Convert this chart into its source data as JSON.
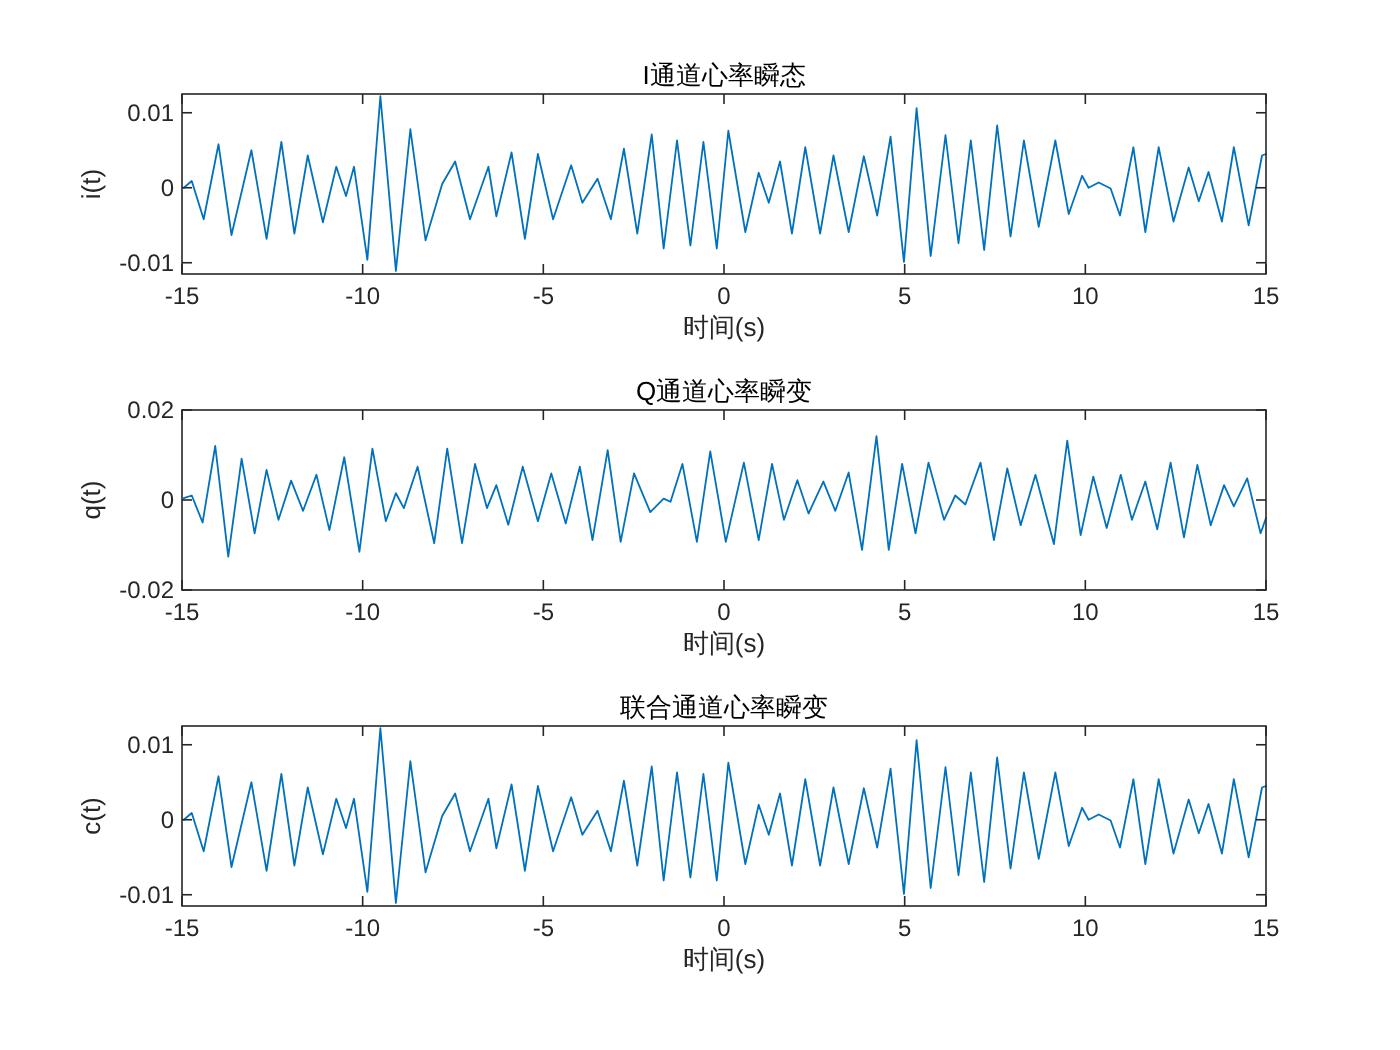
{
  "chart_data": [
    {
      "type": "line",
      "title": "I通道心率瞬态",
      "xlabel": "时间(s)",
      "ylabel": "i(t)",
      "xlim": [
        -15,
        15
      ],
      "xticks": [
        -15,
        -10,
        -5,
        0,
        5,
        10,
        15
      ],
      "ylim": [
        -0.0115,
        0.0125
      ],
      "yticks": [
        -0.01,
        0,
        0.01
      ],
      "x": [
        -14.95,
        -14.73,
        -14.4,
        -13.99,
        -13.63,
        -13.08,
        -12.66,
        -12.25,
        -11.89,
        -11.52,
        -11.1,
        -10.73,
        -10.46,
        -10.24,
        -9.87,
        -9.51,
        -9.08,
        -8.68,
        -8.26,
        -7.8,
        -7.44,
        -7.03,
        -6.52,
        -6.3,
        -5.88,
        -5.51,
        -5.15,
        -4.73,
        -4.23,
        -3.92,
        -3.5,
        -3.13,
        -2.77,
        -2.4,
        -2.0,
        -1.67,
        -1.3,
        -0.93,
        -0.57,
        -0.2,
        0.12,
        0.59,
        0.96,
        1.24,
        1.55,
        1.88,
        2.25,
        2.66,
        3.03,
        3.45,
        3.87,
        4.24,
        4.61,
        4.98,
        5.33,
        5.72,
        6.13,
        6.49,
        6.83,
        7.2,
        7.56,
        7.93,
        8.3,
        8.71,
        9.17,
        9.54,
        9.91,
        10.09,
        10.37,
        10.7,
        10.96,
        11.33,
        11.66,
        12.03,
        12.44,
        12.86,
        13.14,
        13.41,
        13.78,
        14.11,
        14.52,
        14.89,
        15
      ],
      "series": [
        {
          "color": "#0072bd",
          "values": [
            0,
            0.0009,
            -0.0042,
            0.0058,
            -0.0063,
            0.005,
            -0.0068,
            0.0061,
            -0.0061,
            0.0043,
            -0.0046,
            0.0028,
            -0.0011,
            0.0028,
            -0.0096,
            0.0122,
            -0.0111,
            0.0078,
            -0.007,
            0.0005,
            0.0035,
            -0.0042,
            0.0028,
            -0.0038,
            0.0047,
            -0.0068,
            0.0045,
            -0.0042,
            0.003,
            -0.002,
            0.0012,
            -0.0042,
            0.0052,
            -0.0061,
            0.0071,
            -0.0081,
            0.0063,
            -0.0077,
            0.0061,
            -0.0081,
            0.0076,
            -0.0059,
            0.002,
            -0.002,
            0.0035,
            -0.0061,
            0.0054,
            -0.0061,
            0.0043,
            -0.0059,
            0.0042,
            -0.0037,
            0.0068,
            -0.0099,
            0.0106,
            -0.0091,
            0.007,
            -0.0074,
            0.0063,
            -0.0083,
            0.0083,
            -0.0065,
            0.0063,
            -0.0052,
            0.0063,
            -0.0035,
            0.0016,
            0,
            0.0007,
            -0.0001,
            -0.0037,
            0.0054,
            -0.0059,
            0.0054,
            -0.0045,
            0.0027,
            -0.0018,
            0.0021,
            -0.0045,
            0.0054,
            -0.005,
            0.0043,
            0.0045
          ]
        }
      ]
    },
    {
      "type": "line",
      "title": "Q通道心率瞬变",
      "xlabel": "时间(s)",
      "ylabel": "q(t)",
      "xlim": [
        -15,
        15
      ],
      "xticks": [
        -15,
        -10,
        -5,
        0,
        5,
        10,
        15
      ],
      "ylim": [
        -0.02,
        0.02
      ],
      "yticks": [
        -0.02,
        0,
        0.02
      ],
      "x": [
        -14.95,
        -14.73,
        -14.43,
        -14.08,
        -13.72,
        -13.35,
        -12.99,
        -12.66,
        -12.33,
        -11.98,
        -11.65,
        -11.28,
        -10.92,
        -10.51,
        -10.09,
        -9.73,
        -9.36,
        -9.08,
        -8.86,
        -8.48,
        -8.02,
        -7.66,
        -7.25,
        -6.89,
        -6.56,
        -6.3,
        -5.97,
        -5.57,
        -5.15,
        -4.78,
        -4.38,
        -3.99,
        -3.64,
        -3.22,
        -2.86,
        -2.49,
        -2.04,
        -1.67,
        -1.48,
        -1.15,
        -0.75,
        -0.38,
        0.05,
        0.55,
        0.96,
        1.33,
        1.66,
        2.03,
        2.34,
        2.75,
        3.08,
        3.45,
        3.82,
        4.22,
        4.56,
        4.93,
        5.3,
        5.66,
        6.09,
        6.4,
        6.68,
        7.1,
        7.47,
        7.84,
        8.21,
        8.62,
        9.13,
        9.5,
        9.87,
        10.22,
        10.59,
        10.98,
        11.29,
        11.66,
        11.99,
        12.36,
        12.73,
        13.1,
        13.47,
        13.84,
        14.11,
        14.48,
        14.85,
        15
      ],
      "series": [
        {
          "color": "#0072bd",
          "values": [
            0.0004,
            0.001,
            -0.005,
            0.012,
            -0.0126,
            0.0092,
            -0.0074,
            0.0067,
            -0.0044,
            0.0043,
            -0.0024,
            0.0056,
            -0.0067,
            0.0095,
            -0.0115,
            0.0114,
            -0.0047,
            0.0015,
            -0.0018,
            0.0074,
            -0.0096,
            0.0114,
            -0.0096,
            0.008,
            -0.0018,
            0.0033,
            -0.0055,
            0.0074,
            -0.0047,
            0.0059,
            -0.0052,
            0.0074,
            -0.0089,
            0.0111,
            -0.0093,
            0.0059,
            -0.0027,
            0.0003,
            -0.0004,
            0.008,
            -0.0093,
            0.0108,
            -0.0093,
            0.0083,
            -0.0089,
            0.008,
            -0.0044,
            0.0044,
            -0.003,
            0.0041,
            -0.0024,
            0.0061,
            -0.0111,
            0.0142,
            -0.0111,
            0.008,
            -0.0074,
            0.0083,
            -0.0044,
            0.001,
            -0.001,
            0.0083,
            -0.0089,
            0.007,
            -0.0056,
            0.0056,
            -0.0098,
            0.0132,
            -0.0078,
            0.0052,
            -0.0062,
            0.0056,
            -0.0044,
            0.0041,
            -0.0065,
            0.0083,
            -0.0083,
            0.0078,
            -0.0056,
            0.0033,
            -0.0014,
            0.0048,
            -0.0074,
            -0.004
          ]
        }
      ]
    },
    {
      "type": "line",
      "title": "联合通道心率瞬变",
      "xlabel": "时间(s)",
      "ylabel": "c(t)",
      "xlim": [
        -15,
        15
      ],
      "xticks": [
        -15,
        -10,
        -5,
        0,
        5,
        10,
        15
      ],
      "ylim": [
        -0.0115,
        0.0125
      ],
      "yticks": [
        -0.01,
        0,
        0.01
      ],
      "x": [
        -14.95,
        -14.73,
        -14.4,
        -13.99,
        -13.63,
        -13.08,
        -12.66,
        -12.25,
        -11.89,
        -11.52,
        -11.1,
        -10.73,
        -10.46,
        -10.24,
        -9.87,
        -9.51,
        -9.08,
        -8.68,
        -8.26,
        -7.8,
        -7.44,
        -7.03,
        -6.52,
        -6.3,
        -5.88,
        -5.51,
        -5.15,
        -4.73,
        -4.23,
        -3.92,
        -3.5,
        -3.13,
        -2.77,
        -2.4,
        -2.0,
        -1.67,
        -1.3,
        -0.93,
        -0.57,
        -0.2,
        0.12,
        0.59,
        0.96,
        1.24,
        1.55,
        1.88,
        2.25,
        2.66,
        3.03,
        3.45,
        3.87,
        4.24,
        4.61,
        4.98,
        5.33,
        5.72,
        6.13,
        6.49,
        6.83,
        7.2,
        7.56,
        7.93,
        8.3,
        8.71,
        9.17,
        9.54,
        9.91,
        10.09,
        10.37,
        10.7,
        10.96,
        11.33,
        11.66,
        12.03,
        12.44,
        12.86,
        13.14,
        13.41,
        13.78,
        14.11,
        14.52,
        14.89,
        15
      ],
      "series": [
        {
          "color": "#0072bd",
          "values": [
            0,
            0.0009,
            -0.0042,
            0.0058,
            -0.0063,
            0.005,
            -0.0068,
            0.0061,
            -0.0061,
            0.0043,
            -0.0046,
            0.0028,
            -0.0011,
            0.0028,
            -0.0096,
            0.0122,
            -0.0111,
            0.0078,
            -0.007,
            0.0005,
            0.0035,
            -0.0042,
            0.0028,
            -0.0038,
            0.0047,
            -0.0068,
            0.0045,
            -0.0042,
            0.003,
            -0.002,
            0.0012,
            -0.0042,
            0.0052,
            -0.0061,
            0.0071,
            -0.0081,
            0.0063,
            -0.0077,
            0.0061,
            -0.0081,
            0.0076,
            -0.0059,
            0.002,
            -0.002,
            0.0035,
            -0.0061,
            0.0054,
            -0.0061,
            0.0043,
            -0.0059,
            0.0042,
            -0.0037,
            0.0068,
            -0.0099,
            0.0106,
            -0.0091,
            0.007,
            -0.0074,
            0.0063,
            -0.0083,
            0.0083,
            -0.0065,
            0.0063,
            -0.0052,
            0.0063,
            -0.0035,
            0.0016,
            0,
            0.0007,
            -0.0001,
            -0.0037,
            0.0054,
            -0.0059,
            0.0054,
            -0.0045,
            0.0027,
            -0.0018,
            0.0021,
            -0.0045,
            0.0054,
            -0.005,
            0.0043,
            0.0045
          ]
        }
      ]
    }
  ]
}
